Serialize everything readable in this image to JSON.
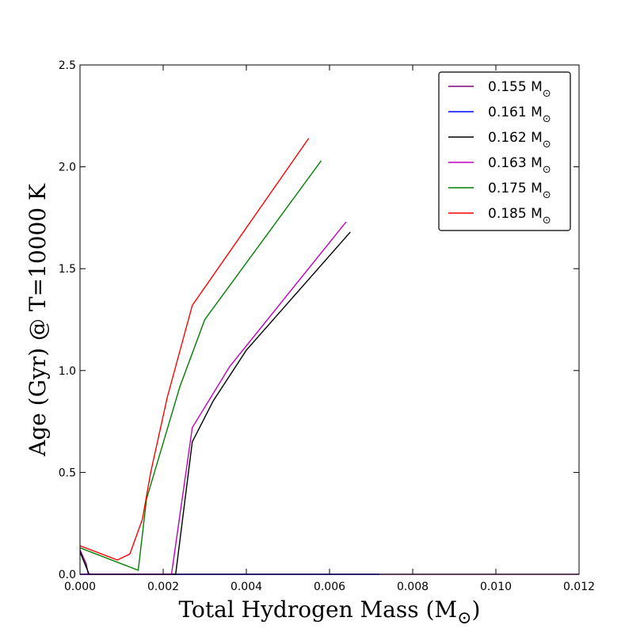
{
  "chart_data": {
    "type": "line",
    "title": "",
    "xlabel": "Total Hydrogen Mass (M",
    "ylabel": "Age (Gyr) @ T=10000 K",
    "unit_symbol": "⊙",
    "xlim": [
      0.0,
      0.012
    ],
    "ylim": [
      0.0,
      2.5
    ],
    "xticks": [
      "0.000",
      "0.002",
      "0.004",
      "0.006",
      "0.008",
      "0.010",
      "0.012"
    ],
    "yticks": [
      "0.0",
      "0.5",
      "1.0",
      "1.5",
      "2.0",
      "2.5"
    ],
    "grid": false,
    "legend_position": "top-right",
    "series": [
      {
        "name": "0.155 M",
        "color": "#800080",
        "x": [
          0.0,
          0.00015,
          0.0002,
          0.012
        ],
        "y": [
          0.12,
          0.05,
          0.0,
          0.0
        ]
      },
      {
        "name": "0.161 M",
        "color": "#0000ff",
        "x": [
          0.0,
          0.0072
        ],
        "y": [
          0.0,
          0.0
        ]
      },
      {
        "name": "0.162 M",
        "color": "#000000",
        "x": [
          0.0,
          0.00022,
          0.0023,
          0.0027,
          0.0032,
          0.004,
          0.0065
        ],
        "y": [
          0.11,
          0.0,
          0.0,
          0.65,
          0.85,
          1.1,
          1.68
        ]
      },
      {
        "name": "0.163 M",
        "color": "#c000c0",
        "x": [
          0.0,
          0.0022,
          0.0027,
          0.0036,
          0.0064
        ],
        "y": [
          0.0,
          0.0,
          0.72,
          1.02,
          1.73
        ]
      },
      {
        "name": "0.175 M",
        "color": "#008000",
        "x": [
          0.0,
          0.0014,
          0.0016,
          0.0024,
          0.003,
          0.0058
        ],
        "y": [
          0.13,
          0.02,
          0.37,
          0.92,
          1.25,
          2.03
        ]
      },
      {
        "name": "0.185 M",
        "color": "#ff0000",
        "x": [
          0.0,
          0.0009,
          0.0012,
          0.0015,
          0.0017,
          0.0021,
          0.0027,
          0.0055
        ],
        "y": [
          0.14,
          0.07,
          0.1,
          0.27,
          0.5,
          0.87,
          1.32,
          2.14
        ]
      }
    ]
  }
}
